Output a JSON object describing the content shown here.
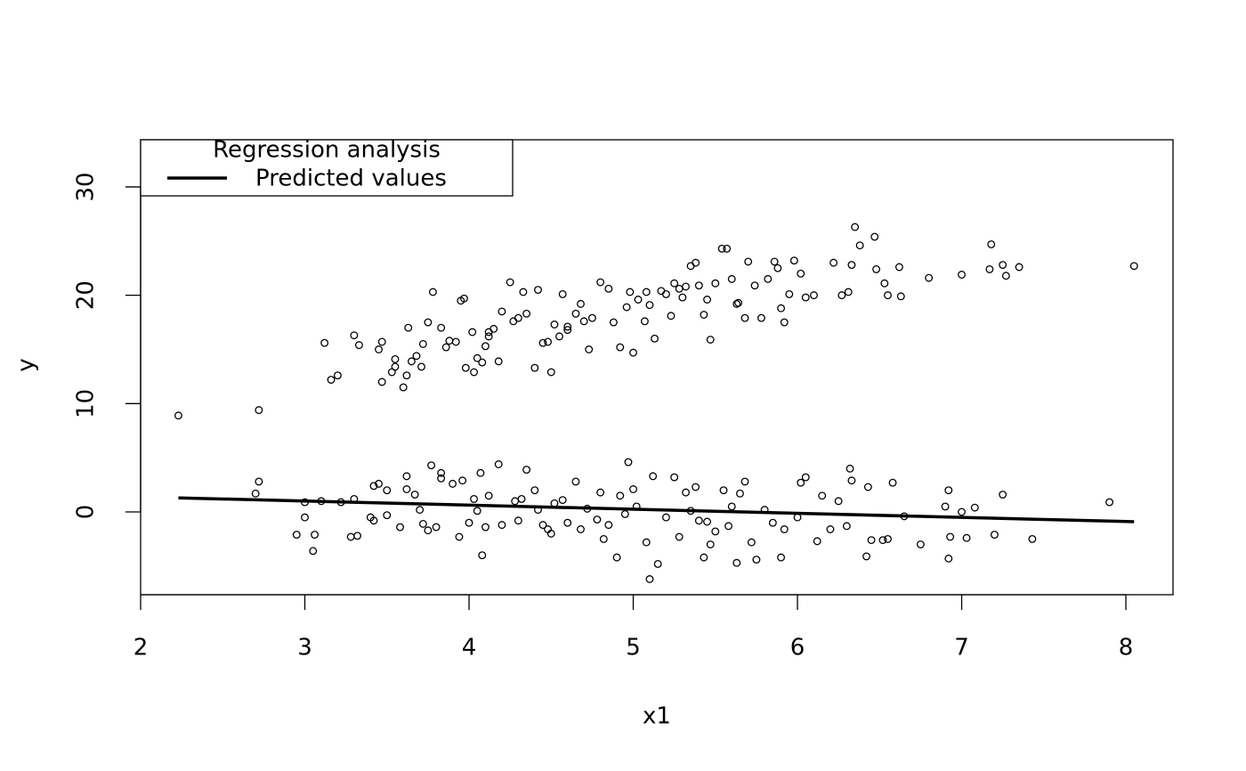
{
  "chart_data": {
    "type": "scatter",
    "xlabel": "x1",
    "ylabel": "y",
    "xlim": [
      2.0,
      8.287
    ],
    "ylim": [
      -7.64,
      34.35
    ],
    "xticks": [
      2,
      3,
      4,
      5,
      6,
      7,
      8
    ],
    "yticks": [
      0,
      10,
      20,
      30
    ],
    "points": {
      "color": "#000000",
      "x": [
        2.23,
        2.72,
        3.12,
        3.16,
        3.2,
        3.3,
        3.33,
        3.45,
        3.47,
        3.47,
        3.53,
        3.55,
        3.6,
        3.62,
        3.63,
        3.65,
        3.68,
        3.71,
        3.72,
        3.75,
        3.78,
        3.83,
        3.86,
        3.88,
        3.92,
        3.95,
        3.97,
        3.98,
        4.02,
        4.03,
        4.05,
        4.08,
        4.1,
        4.12,
        4.15,
        4.18,
        4.2,
        4.25,
        4.27,
        4.3,
        4.33,
        4.35,
        4.4,
        4.42,
        4.45,
        4.48,
        4.5,
        4.52,
        4.55,
        4.57,
        4.6,
        4.65,
        4.68,
        4.7,
        4.73,
        4.75,
        4.8,
        4.85,
        4.88,
        4.92,
        4.96,
        4.98,
        5.0,
        5.03,
        5.07,
        5.1,
        5.13,
        5.17,
        5.2,
        5.23,
        5.25,
        5.28,
        5.32,
        5.35,
        5.38,
        5.4,
        5.43,
        5.45,
        5.47,
        5.5,
        5.54,
        5.57,
        5.6,
        5.63,
        5.68,
        5.7,
        5.74,
        5.78,
        5.82,
        5.86,
        5.88,
        5.92,
        5.95,
        5.98,
        6.02,
        6.05,
        6.1,
        6.22,
        6.27,
        6.31,
        6.35,
        6.38,
        6.47,
        6.48,
        6.55,
        6.62,
        6.8,
        7.0,
        7.17,
        7.18,
        7.25,
        7.35,
        8.05,
        7.27,
        6.63,
        6.53,
        6.33,
        5.9,
        5.64,
        5.08,
        4.12,
        3.55,
        4.6,
        5.3,
        2.7,
        2.72,
        2.95,
        3.0,
        3.0,
        3.05,
        3.06,
        3.1,
        3.22,
        3.28,
        3.3,
        3.32,
        3.4,
        3.42,
        3.45,
        3.5,
        3.5,
        3.58,
        3.62,
        3.62,
        3.67,
        3.7,
        3.72,
        3.75,
        3.77,
        3.8,
        3.83,
        3.83,
        3.9,
        3.94,
        3.96,
        4.0,
        4.03,
        4.05,
        4.07,
        4.08,
        4.1,
        4.12,
        4.18,
        4.2,
        4.3,
        4.32,
        4.35,
        4.4,
        4.42,
        4.45,
        4.48,
        4.5,
        4.52,
        4.57,
        4.6,
        4.65,
        4.68,
        4.72,
        4.78,
        4.82,
        4.85,
        4.9,
        4.92,
        4.95,
        4.97,
        5.0,
        5.02,
        5.08,
        5.1,
        5.12,
        5.15,
        5.2,
        5.25,
        5.28,
        5.32,
        5.35,
        5.4,
        5.43,
        5.45,
        5.5,
        5.55,
        5.58,
        5.6,
        5.63,
        5.65,
        5.68,
        5.72,
        5.75,
        5.8,
        5.85,
        5.9,
        5.92,
        6.0,
        6.02,
        6.05,
        6.12,
        6.15,
        6.2,
        6.25,
        6.3,
        6.32,
        6.33,
        6.42,
        6.43,
        6.45,
        6.52,
        6.58,
        6.65,
        6.75,
        6.9,
        6.92,
        6.93,
        7.0,
        7.03,
        7.08,
        7.2,
        7.25,
        7.43,
        7.9,
        6.92,
        6.55,
        4.28,
        5.38,
        4.8,
        5.47,
        3.42
      ],
      "values": [
        8.9,
        9.4,
        15.6,
        12.2,
        12.6,
        16.3,
        15.4,
        15.0,
        15.7,
        12.0,
        12.9,
        14.1,
        11.5,
        12.6,
        17.0,
        13.9,
        14.4,
        13.4,
        15.5,
        17.5,
        20.3,
        17.0,
        15.2,
        15.8,
        15.7,
        19.5,
        19.7,
        13.3,
        16.6,
        12.9,
        14.2,
        13.8,
        15.3,
        16.2,
        16.9,
        13.9,
        18.5,
        21.2,
        17.6,
        17.9,
        20.3,
        18.3,
        13.3,
        20.5,
        15.6,
        15.7,
        12.9,
        17.3,
        16.2,
        20.1,
        16.8,
        18.3,
        19.2,
        17.6,
        15.0,
        17.9,
        21.2,
        20.6,
        17.5,
        15.2,
        18.9,
        20.3,
        14.7,
        19.6,
        17.6,
        19.1,
        16.0,
        20.4,
        20.1,
        18.1,
        21.1,
        20.6,
        20.8,
        22.7,
        23.0,
        20.9,
        18.2,
        19.6,
        15.9,
        21.1,
        24.3,
        24.3,
        21.5,
        19.2,
        17.9,
        23.1,
        20.9,
        17.9,
        21.5,
        23.1,
        22.5,
        17.5,
        20.1,
        23.2,
        22.0,
        19.8,
        20.0,
        23.0,
        20.0,
        20.3,
        26.3,
        24.6,
        25.4,
        22.4,
        20.0,
        22.6,
        21.6,
        21.9,
        22.4,
        24.7,
        22.8,
        22.6,
        22.7,
        21.8,
        19.9,
        21.1,
        22.8,
        18.8,
        19.3,
        20.3,
        16.6,
        13.4,
        17.1,
        19.8,
        1.7,
        2.8,
        -2.1,
        0.9,
        -0.5,
        -3.6,
        -2.1,
        1.0,
        0.9,
        -2.3,
        1.2,
        -2.2,
        -0.5,
        2.4,
        2.6,
        -0.3,
        2.0,
        -1.4,
        3.3,
        2.1,
        1.6,
        0.2,
        -1.1,
        -1.7,
        4.3,
        -1.4,
        3.6,
        3.1,
        2.6,
        -2.3,
        2.9,
        -1.0,
        1.2,
        0.1,
        3.6,
        -4.0,
        -1.4,
        1.5,
        4.4,
        -1.2,
        -0.8,
        1.2,
        3.9,
        2.0,
        0.2,
        -1.2,
        -1.6,
        -2.0,
        0.8,
        1.1,
        -1.0,
        2.8,
        -1.6,
        0.3,
        -0.7,
        -2.5,
        -1.2,
        -4.2,
        1.5,
        -0.2,
        4.6,
        2.1,
        0.5,
        -2.8,
        -6.2,
        3.3,
        -4.8,
        -0.5,
        3.2,
        -2.3,
        1.8,
        0.1,
        -0.8,
        -4.2,
        -0.9,
        -1.8,
        2.0,
        -1.3,
        0.5,
        -4.7,
        1.7,
        2.8,
        -2.8,
        -4.4,
        0.2,
        -1.0,
        -4.2,
        -1.6,
        -0.5,
        2.7,
        3.2,
        -2.7,
        1.5,
        -1.6,
        1.0,
        -1.3,
        4.0,
        2.9,
        -4.1,
        2.3,
        -2.6,
        -2.6,
        2.7,
        -0.4,
        -3.0,
        0.5,
        2.0,
        -2.3,
        0.0,
        -2.4,
        0.4,
        -2.1,
        1.6,
        -2.5,
        0.9,
        -4.3,
        -2.5,
        1.0,
        2.3,
        1.8,
        -3.0,
        -0.8
      ]
    },
    "series": [
      {
        "name": "Predicted values",
        "color": "#000000",
        "x": [
          2.23,
          8.05
        ],
        "values": [
          1.3,
          -0.9
        ]
      }
    ],
    "legend": {
      "title": "Regression analysis",
      "position": "top-left"
    }
  }
}
